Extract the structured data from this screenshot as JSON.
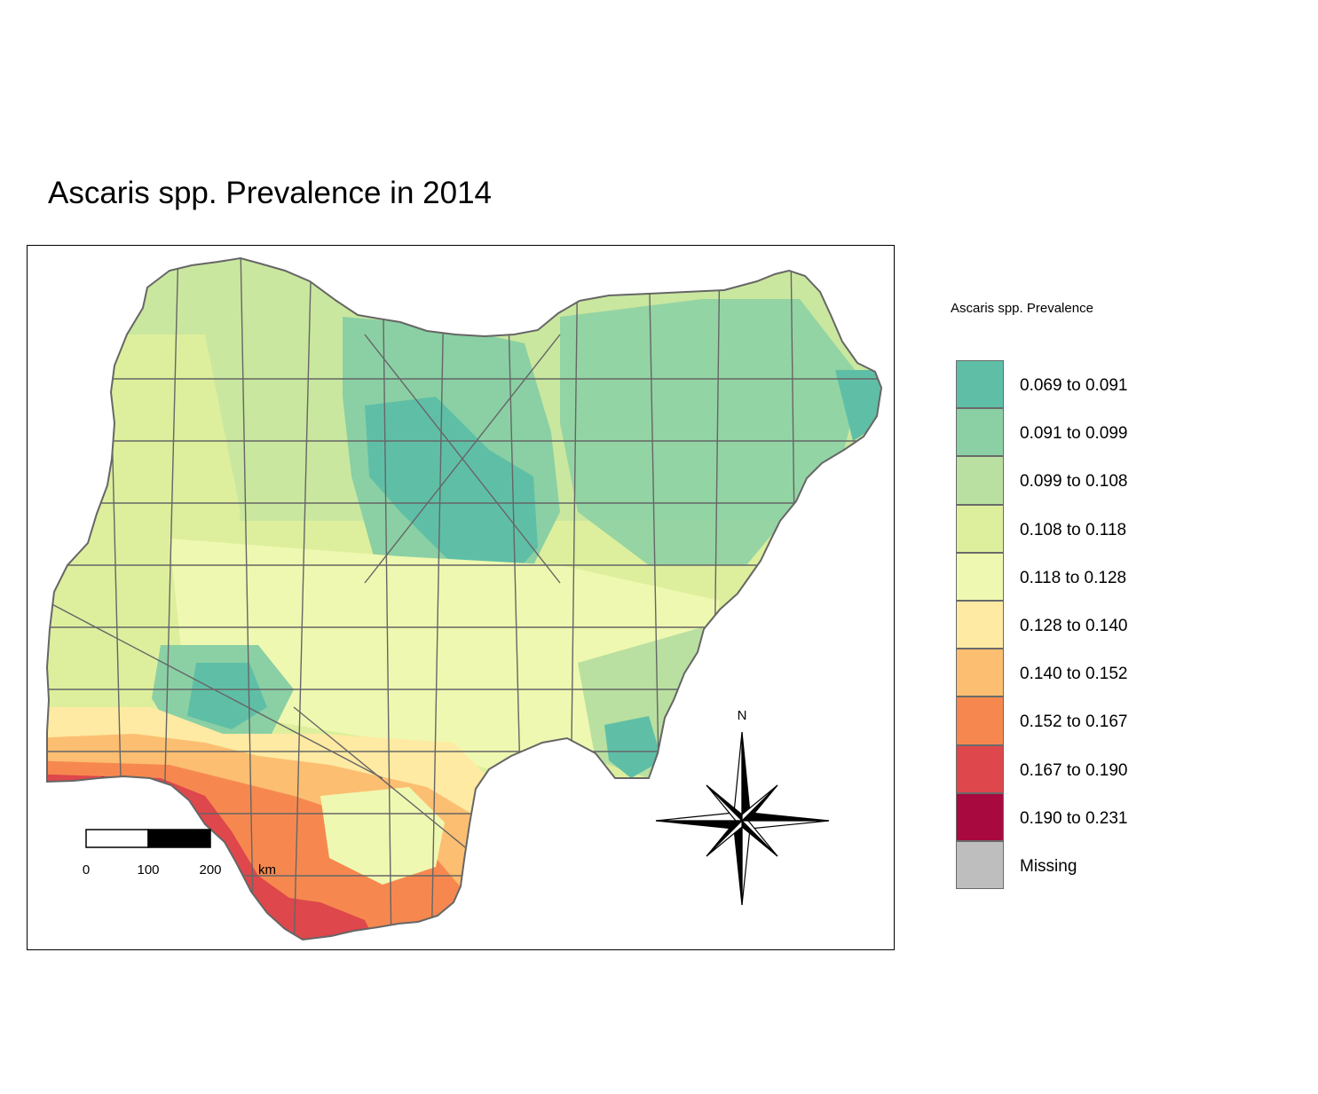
{
  "title": "Ascaris spp. Prevalence in 2014",
  "legend": {
    "title": "Ascaris spp. Prevalence",
    "classes": [
      {
        "label": "0.069 to 0.091",
        "color": "#5fbfa6"
      },
      {
        "label": "0.091 to 0.099",
        "color": "#8ad0a4"
      },
      {
        "label": "0.099 to 0.108",
        "color": "#b9e0a0"
      },
      {
        "label": "0.108 to 0.118",
        "color": "#ddef9d"
      },
      {
        "label": "0.118 to 0.128",
        "color": "#eff8b0"
      },
      {
        "label": "0.128 to 0.140",
        "color": "#feeaa2"
      },
      {
        "label": "0.140 to 0.152",
        "color": "#fcbe71"
      },
      {
        "label": "0.152 to 0.167",
        "color": "#f6884f"
      },
      {
        "label": "0.167 to 0.190",
        "color": "#de474b"
      },
      {
        "label": "0.190 to 0.231",
        "color": "#a8093f"
      },
      {
        "label": "Missing",
        "color": "#bebebe"
      }
    ]
  },
  "scale_bar": {
    "ticks": [
      "0",
      "100",
      "200"
    ],
    "unit": "km"
  },
  "north_arrow": {
    "label": "N"
  }
}
